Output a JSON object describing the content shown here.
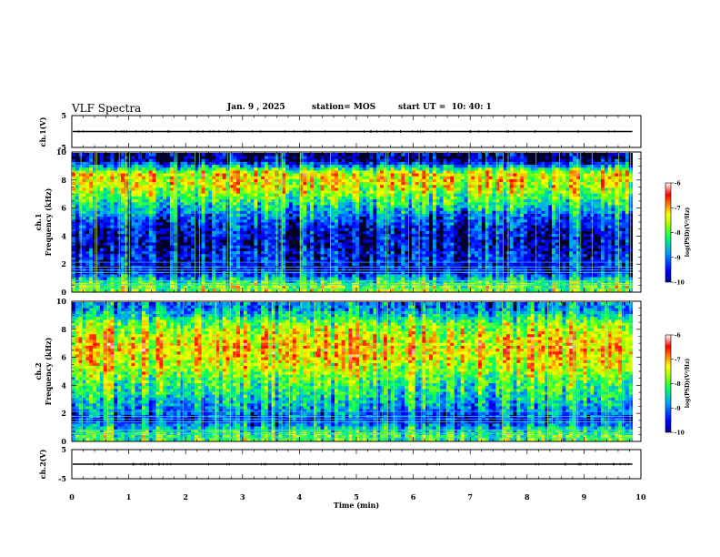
{
  "header": {
    "title": "VLF Spectra",
    "date": "Jan. 9 , 2025",
    "station": "station= MOS",
    "start": "start UT =  10: 40: 1"
  },
  "panels": {
    "ch1_wave_label": "ch.1(V)",
    "ch1_spec_label": "ch.1\nFrequency (kHz)",
    "ch2_spec_label": "ch.2\nFrequency (kHz)",
    "ch2_wave_label": "ch.2(V)",
    "wave_ticks": [
      "5",
      "-5"
    ],
    "freq_ticks": [
      "0",
      "2",
      "4",
      "6",
      "8",
      "10"
    ],
    "time_ticks": [
      "0",
      "1",
      "2",
      "3",
      "4",
      "5",
      "6",
      "7",
      "8",
      "9",
      "10"
    ],
    "xlabel": "Time (min)"
  },
  "colorbar": {
    "ticks": [
      "-6",
      "-7",
      "-8",
      "-9",
      "-10"
    ],
    "label": "log(PSD)(V²/Hz)",
    "colors": [
      "#000090",
      "#0000ff",
      "#00a0ff",
      "#00ff60",
      "#a0ff00",
      "#ffff00",
      "#ff8000",
      "#ff0000",
      "#ffffff"
    ]
  },
  "chart_data": {
    "type": "heatmap",
    "xlabel": "Time (min)",
    "ylabel": "Frequency (kHz)",
    "xlim": [
      0,
      10
    ],
    "ylim": [
      0,
      10
    ],
    "data_end_min": 9.85,
    "zlim": [
      -10,
      -6
    ],
    "zlabel": "log(PSD)(V²/Hz)",
    "series": [
      {
        "name": "ch.1",
        "freq_khz": [
          0.5,
          1.5,
          2.5,
          3.5,
          4.5,
          5.5,
          6.5,
          7.5,
          8.5,
          9.5
        ],
        "log_psd": [
          -7.8,
          -9.6,
          -9.4,
          -9.7,
          -9.5,
          -9.0,
          -8.2,
          -7.5,
          -7.2,
          -9.9
        ]
      },
      {
        "name": "ch.2",
        "freq_khz": [
          0.5,
          1.5,
          2.5,
          3.5,
          4.5,
          5.5,
          6.5,
          7.5,
          8.5,
          9.5
        ],
        "log_psd": [
          -8.0,
          -9.3,
          -8.7,
          -8.3,
          -7.9,
          -7.4,
          -7.1,
          -7.3,
          -7.8,
          -8.9
        ]
      }
    ],
    "waveforms": [
      {
        "name": "ch.1(V)",
        "ylim": [
          -5,
          5
        ],
        "level_v": 0
      },
      {
        "name": "ch.2(V)",
        "ylim": [
          -5,
          5
        ],
        "level_v": 0
      }
    ]
  }
}
